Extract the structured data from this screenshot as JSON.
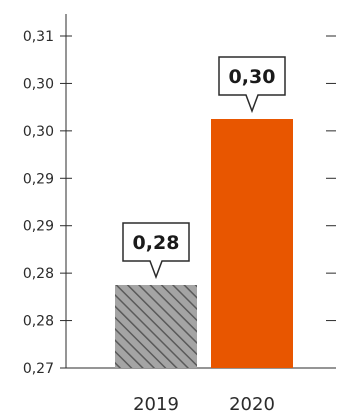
{
  "chart_data": {
    "type": "bar",
    "title": "",
    "xlabel": "",
    "ylabel": "",
    "y_tick_labels": [
      "0,27",
      "0,28",
      "0,28",
      "0,29",
      "0,29",
      "0,30",
      "0,30",
      "0,31"
    ],
    "ylim": [
      0.27,
      0.31
    ],
    "categories": [
      "2019",
      "2020"
    ],
    "values": [
      0.28,
      0.3
    ],
    "data_labels": [
      "0,28",
      "0,30"
    ],
    "colors": {
      "bar_2019": "#9c9c9c",
      "bar_2019_hatch": "#5a5a5a",
      "bar_2020": "#e85600",
      "axis": "#2b2b2b",
      "text": "#2b2b2b"
    },
    "grid": false,
    "legend": "none"
  }
}
